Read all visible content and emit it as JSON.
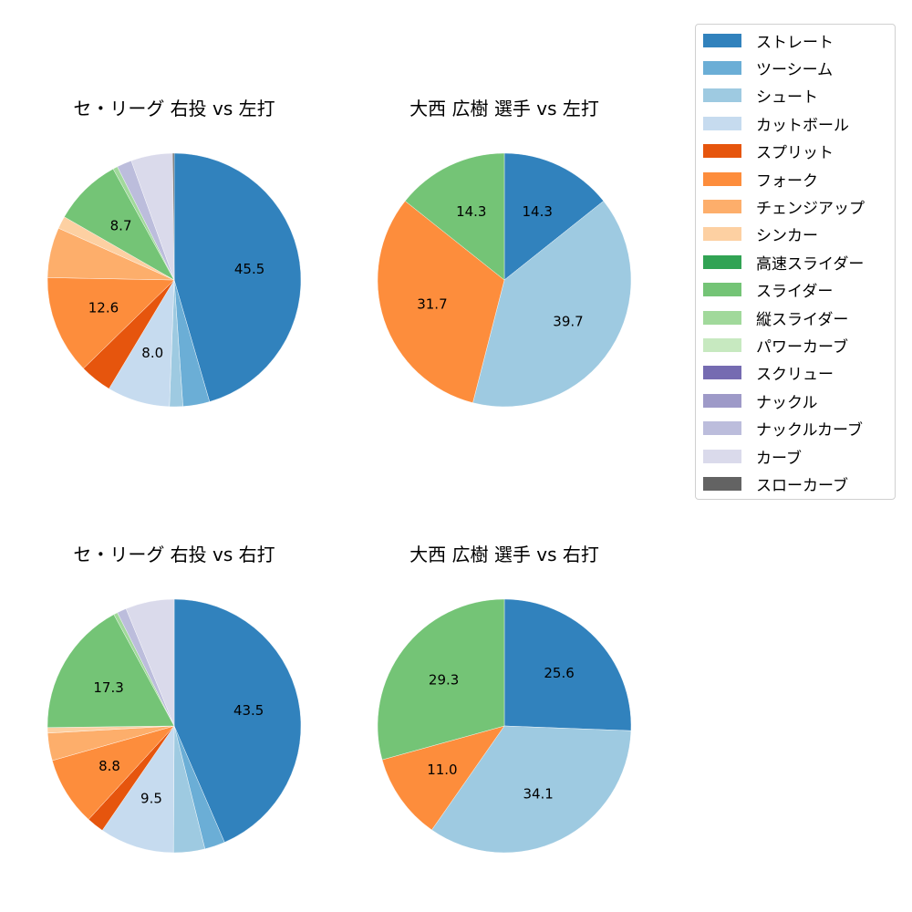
{
  "chart_data": [
    {
      "type": "pie",
      "title": "セ・リーグ 右投 vs 左打",
      "categories": [
        "ストレート",
        "ツーシーム",
        "シュート",
        "カットボール",
        "スプリット",
        "フォーク",
        "チェンジアップ",
        "シンカー",
        "スライダー",
        "縦スライダー",
        "ナックルカーブ",
        "カーブ",
        "スローカーブ"
      ],
      "values": [
        45.5,
        3.4,
        1.7,
        8.0,
        4.1,
        12.6,
        6.4,
        1.6,
        8.7,
        0.6,
        1.9,
        5.3,
        0.2
      ],
      "labels_shown": {
        "ストレート": "45.5",
        "カットボール": "8.0",
        "フォーク": "12.6",
        "スライダー": "8.7"
      }
    },
    {
      "type": "pie",
      "title": "大西 広樹 選手 vs 左打",
      "categories": [
        "ストレート",
        "シュート",
        "フォーク",
        "スライダー"
      ],
      "values": [
        14.3,
        39.7,
        31.7,
        14.3
      ],
      "labels_shown": {
        "ストレート": "14.3",
        "シュート": "39.7",
        "フォーク": "31.7",
        "スライダー": "14.3"
      }
    },
    {
      "type": "pie",
      "title": "セ・リーグ 右投 vs 右打",
      "categories": [
        "ストレート",
        "ツーシーム",
        "シュート",
        "カットボール",
        "スプリット",
        "フォーク",
        "チェンジアップ",
        "シンカー",
        "スライダー",
        "縦スライダー",
        "ナックルカーブ",
        "カーブ"
      ],
      "values": [
        43.5,
        2.6,
        4.0,
        9.5,
        2.2,
        8.8,
        3.5,
        0.7,
        17.3,
        0.5,
        1.2,
        6.2
      ],
      "labels_shown": {
        "ストレート": "43.5",
        "カットボール": "9.5",
        "フォーク": "8.8",
        "スライダー": "17.3"
      }
    },
    {
      "type": "pie",
      "title": "大西 広樹 選手 vs 右打",
      "categories": [
        "ストレート",
        "シュート",
        "フォーク",
        "スライダー"
      ],
      "values": [
        25.6,
        34.1,
        11.0,
        29.3
      ],
      "labels_shown": {
        "ストレート": "25.6",
        "シュート": "34.1",
        "フォーク": "11.0",
        "スライダー": "29.3"
      }
    }
  ],
  "legend": {
    "items": [
      {
        "label": "ストレート",
        "color": "#3182bd"
      },
      {
        "label": "ツーシーム",
        "color": "#6baed6"
      },
      {
        "label": "シュート",
        "color": "#9ecae1"
      },
      {
        "label": "カットボール",
        "color": "#c6dbef"
      },
      {
        "label": "スプリット",
        "color": "#e6550d"
      },
      {
        "label": "フォーク",
        "color": "#fd8d3c"
      },
      {
        "label": "チェンジアップ",
        "color": "#fdae6b"
      },
      {
        "label": "シンカー",
        "color": "#fdd0a2"
      },
      {
        "label": "高速スライダー",
        "color": "#31a354"
      },
      {
        "label": "スライダー",
        "color": "#74c476"
      },
      {
        "label": "縦スライダー",
        "color": "#a1d99b"
      },
      {
        "label": "パワーカーブ",
        "color": "#c7e9c0"
      },
      {
        "label": "スクリュー",
        "color": "#756bb1"
      },
      {
        "label": "ナックル",
        "color": "#9e9ac8"
      },
      {
        "label": "ナックルカーブ",
        "color": "#bcbddc"
      },
      {
        "label": "カーブ",
        "color": "#dadaeb"
      },
      {
        "label": "スローカーブ",
        "color": "#636363"
      }
    ]
  }
}
